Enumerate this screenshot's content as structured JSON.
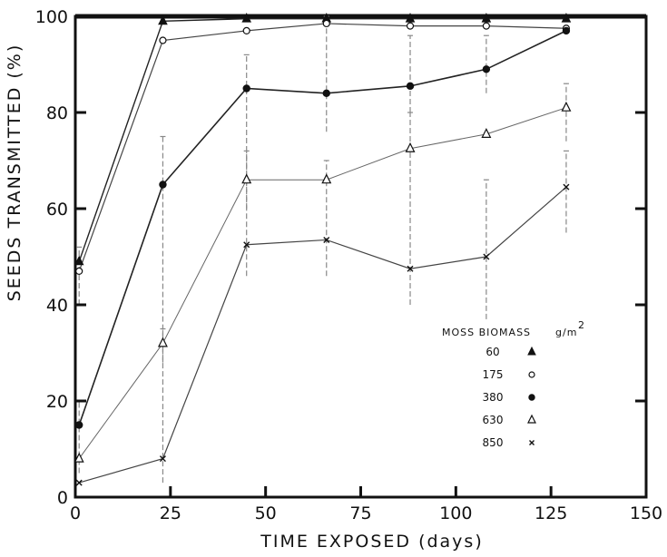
{
  "chart_data": {
    "type": "line",
    "xlabel": "TIME EXPOSED (days)",
    "ylabel": "SEEDS TRANSMITTED (%)",
    "xlim": [
      0,
      150
    ],
    "ylim": [
      0,
      100
    ],
    "xticks": [
      0,
      25,
      50,
      75,
      100,
      125,
      150
    ],
    "yticks": [
      0,
      20,
      40,
      60,
      80,
      100
    ],
    "grid": false,
    "legend_position": "lower-right",
    "legend_title": "MOSS BIOMASS",
    "legend_unit": "g/m",
    "legend_unit_sup": "2",
    "x": [
      1,
      23,
      45,
      66,
      88,
      108,
      129
    ],
    "series": [
      {
        "name": "60",
        "marker": "filled-triangle",
        "values": [
          49,
          99,
          99.5,
          99.5,
          99.5,
          99.5,
          99.5
        ]
      },
      {
        "name": "175",
        "marker": "open-circle",
        "values": [
          47,
          95,
          97,
          98.5,
          98,
          98,
          97.5
        ]
      },
      {
        "name": "380",
        "marker": "filled-circle",
        "values": [
          15,
          65,
          85,
          84,
          85.5,
          89,
          97
        ]
      },
      {
        "name": "630",
        "marker": "open-triangle",
        "values": [
          8,
          32,
          66,
          66,
          72.5,
          75.5,
          81
        ]
      },
      {
        "name": "850",
        "marker": "cross",
        "values": [
          3,
          8,
          52.5,
          53.5,
          47.5,
          50,
          64.5
        ]
      }
    ],
    "error_bars": [
      {
        "x": 1,
        "low": 40,
        "high": 52
      },
      {
        "x": 1,
        "low": 5,
        "high": 20
      },
      {
        "x": 23,
        "low": 3,
        "high": 35
      },
      {
        "x": 23,
        "low": 28,
        "high": 75
      },
      {
        "x": 45,
        "low": 46,
        "high": 72
      },
      {
        "x": 45,
        "low": 60,
        "high": 92
      },
      {
        "x": 66,
        "low": 46,
        "high": 70
      },
      {
        "x": 66,
        "low": 76,
        "high": 100
      },
      {
        "x": 88,
        "low": 40,
        "high": 80
      },
      {
        "x": 88,
        "low": 80,
        "high": 96
      },
      {
        "x": 108,
        "low": 37,
        "high": 66
      },
      {
        "x": 108,
        "low": 84,
        "high": 96
      },
      {
        "x": 129,
        "low": 55,
        "high": 72
      },
      {
        "x": 129,
        "low": 74,
        "high": 86
      }
    ]
  }
}
